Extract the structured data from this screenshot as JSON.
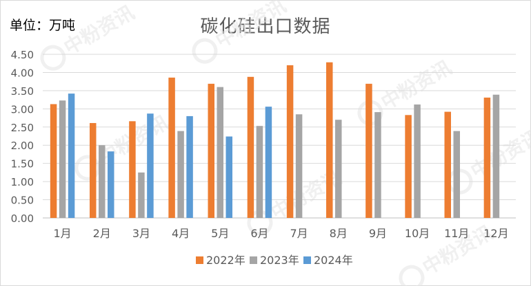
{
  "unit_label": "单位：万吨",
  "watermark": "中粉资讯",
  "colors": {
    "2022年": "#ED7D31",
    "2023年": "#A5A5A5",
    "2024年": "#5B9BD5",
    "axis_text": "#595959",
    "grid": "#d9d9d9"
  },
  "chart_data": {
    "type": "bar",
    "title": "碳化硅出口数据",
    "xlabel": "",
    "ylabel": "",
    "ylim": [
      0,
      4.5
    ],
    "yticks": [
      "0.00",
      "0.50",
      "1.00",
      "1.50",
      "2.00",
      "2.50",
      "3.00",
      "3.50",
      "4.00",
      "4.50"
    ],
    "categories": [
      "1月",
      "2月",
      "3月",
      "4月",
      "5月",
      "6月",
      "7月",
      "8月",
      "9月",
      "10月",
      "11月",
      "12月"
    ],
    "series": [
      {
        "name": "2022年",
        "values": [
          3.13,
          2.61,
          2.66,
          3.86,
          3.69,
          3.88,
          4.2,
          4.28,
          3.69,
          2.83,
          2.92,
          3.31
        ]
      },
      {
        "name": "2023年",
        "values": [
          3.23,
          2.0,
          1.25,
          2.39,
          3.6,
          2.53,
          2.85,
          2.7,
          2.91,
          3.12,
          2.39,
          3.39
        ]
      },
      {
        "name": "2024年",
        "values": [
          3.42,
          1.83,
          2.87,
          2.8,
          2.24,
          3.06,
          null,
          null,
          null,
          null,
          null,
          null
        ]
      }
    ],
    "grid": true,
    "legend": "bottom-center"
  }
}
